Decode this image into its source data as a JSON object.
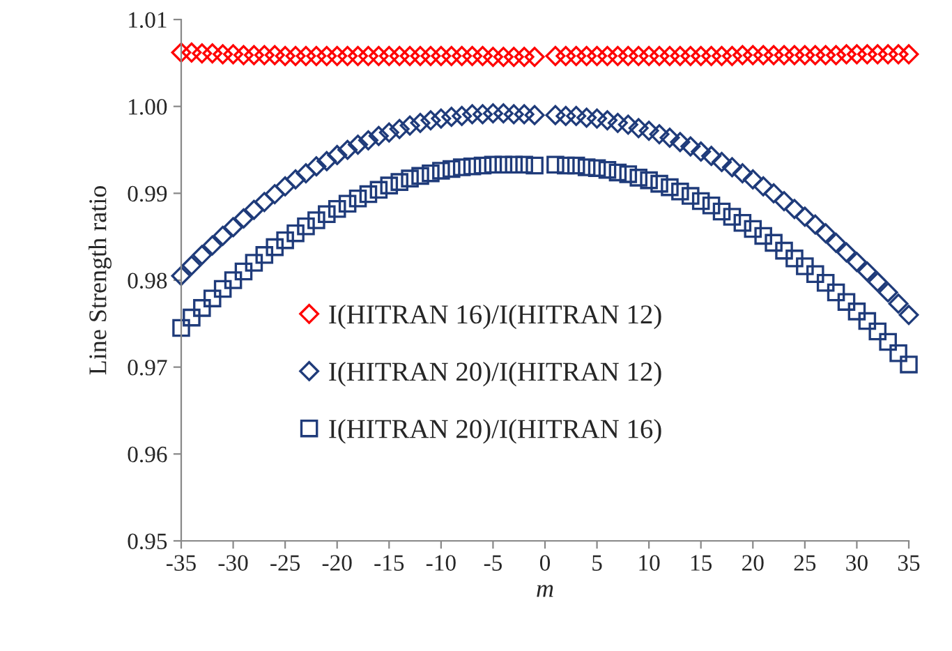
{
  "chart_data": {
    "type": "scatter",
    "xlabel": "m",
    "ylabel": "Line Strength ratio",
    "x": [
      -35,
      -34,
      -33,
      -32,
      -31,
      -30,
      -29,
      -28,
      -27,
      -26,
      -25,
      -24,
      -23,
      -22,
      -21,
      -20,
      -19,
      -18,
      -17,
      -16,
      -15,
      -14,
      -13,
      -12,
      -11,
      -10,
      -9,
      -8,
      -7,
      -6,
      -5,
      -4,
      -3,
      -2,
      -1,
      1,
      2,
      3,
      4,
      5,
      6,
      7,
      8,
      9,
      10,
      11,
      12,
      13,
      14,
      15,
      16,
      17,
      18,
      19,
      20,
      21,
      22,
      23,
      24,
      25,
      26,
      27,
      28,
      29,
      30,
      31,
      32,
      33,
      34,
      35
    ],
    "series": [
      {
        "name": "I(HITRAN 16)/I(HITRAN 12)",
        "color": "#ff0000",
        "marker": "diamond",
        "values": [
          1.0062,
          1.0062,
          1.0061,
          1.0061,
          1.006,
          1.006,
          1.0059,
          1.0059,
          1.0059,
          1.0059,
          1.0058,
          1.0058,
          1.0058,
          1.0058,
          1.0058,
          1.0058,
          1.0058,
          1.0058,
          1.0058,
          1.0058,
          1.0058,
          1.0058,
          1.0058,
          1.0058,
          1.0058,
          1.0058,
          1.0058,
          1.0058,
          1.0058,
          1.0058,
          1.0057,
          1.0057,
          1.0057,
          1.0057,
          1.0057,
          1.0058,
          1.0058,
          1.0058,
          1.0058,
          1.0058,
          1.0058,
          1.0058,
          1.0058,
          1.0058,
          1.0058,
          1.0058,
          1.0058,
          1.0058,
          1.0058,
          1.0058,
          1.0058,
          1.0058,
          1.0058,
          1.0059,
          1.0059,
          1.0059,
          1.0059,
          1.0059,
          1.0059,
          1.0059,
          1.0059,
          1.0059,
          1.0059,
          1.006,
          1.006,
          1.006,
          1.006,
          1.006,
          1.006,
          1.006
        ]
      },
      {
        "name": "I(HITRAN 20)/I(HITRAN 12)",
        "color": "#1f3b7a",
        "marker": "diamond",
        "values": [
          0.9805,
          0.9817,
          0.9829,
          0.984,
          0.9851,
          0.9861,
          0.9871,
          0.9881,
          0.989,
          0.9899,
          0.9908,
          0.9916,
          0.9923,
          0.9931,
          0.9937,
          0.9944,
          0.995,
          0.9956,
          0.9961,
          0.9966,
          0.997,
          0.9974,
          0.9978,
          0.9981,
          0.9984,
          0.9986,
          0.9988,
          0.9989,
          0.9991,
          0.9991,
          0.9992,
          0.9992,
          0.9991,
          0.9991,
          0.999,
          0.999,
          0.9989,
          0.9989,
          0.9987,
          0.9986,
          0.9984,
          0.9981,
          0.9979,
          0.9975,
          0.9972,
          0.9968,
          0.9964,
          0.9959,
          0.9954,
          0.9948,
          0.9943,
          0.9936,
          0.993,
          0.9923,
          0.9916,
          0.9908,
          0.99,
          0.9891,
          0.9882,
          0.9873,
          0.9864,
          0.9854,
          0.9843,
          0.9832,
          0.9821,
          0.981,
          0.9798,
          0.9786,
          0.9773,
          0.976
        ]
      },
      {
        "name": "I(HITRAN 20)/I(HITRAN 16)",
        "color": "#1f3b7a",
        "marker": "square",
        "values": [
          0.9745,
          0.9757,
          0.9768,
          0.9779,
          0.979,
          0.98,
          0.981,
          0.982,
          0.9829,
          0.9838,
          0.9846,
          0.9854,
          0.9862,
          0.9869,
          0.9876,
          0.9882,
          0.9888,
          0.9894,
          0.9899,
          0.9904,
          0.9909,
          0.9913,
          0.9917,
          0.992,
          0.9923,
          0.9926,
          0.9928,
          0.993,
          0.9931,
          0.9932,
          0.9933,
          0.9933,
          0.9933,
          0.9933,
          0.9932,
          0.9933,
          0.9932,
          0.9932,
          0.993,
          0.9929,
          0.9927,
          0.9924,
          0.9922,
          0.9918,
          0.9915,
          0.9911,
          0.9907,
          0.9902,
          0.9897,
          0.9891,
          0.9886,
          0.9879,
          0.9873,
          0.9866,
          0.9859,
          0.9851,
          0.9843,
          0.9834,
          0.9825,
          0.9816,
          0.9807,
          0.9797,
          0.9786,
          0.9775,
          0.9764,
          0.9753,
          0.9741,
          0.9729,
          0.9716,
          0.9703
        ]
      }
    ],
    "xlim": [
      -35,
      35
    ],
    "xticks": [
      -35,
      -30,
      -25,
      -20,
      -15,
      -10,
      -5,
      0,
      5,
      10,
      15,
      20,
      25,
      30,
      35
    ],
    "ylim": [
      0.95,
      1.01
    ],
    "yticks": [
      0.95,
      0.96,
      0.97,
      0.98,
      0.99,
      {
        "value": 1.0,
        "label": "1.00"
      },
      1.01
    ],
    "grid": false,
    "legend": "center left"
  }
}
